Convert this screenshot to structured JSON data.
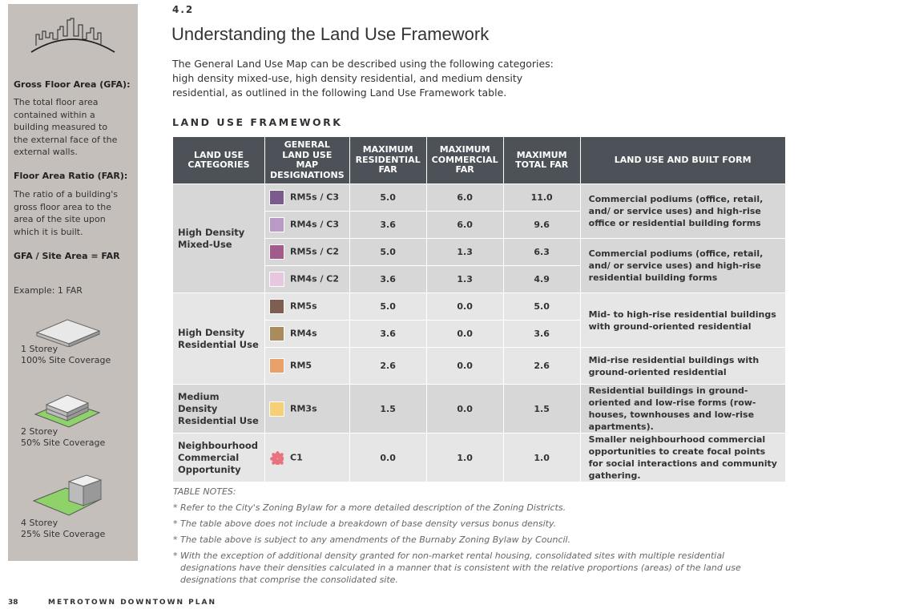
{
  "sidebar": {
    "gfa_heading": "Gross Floor Area (GFA):",
    "gfa_text": "The total floor area contained within a building measured to the external face of the external walls.",
    "far_heading": "Floor Area Ratio (FAR):",
    "far_text": "The ratio of a building's gross floor area to the area of the site upon which it is built.",
    "formula": "GFA / Site Area = FAR",
    "example": "Example: 1 FAR",
    "diagrams": [
      {
        "storeys": "1 Storey",
        "coverage": "100% Site Coverage"
      },
      {
        "storeys": "2 Storey",
        "coverage": "50% Site Coverage"
      },
      {
        "storeys": "4 Storey",
        "coverage": "25% Site Coverage"
      }
    ]
  },
  "header": {
    "section": "4.2",
    "title": "Understanding the Land Use Framework",
    "intro": "The General Land Use Map can be described using the following categories: high density mixed-use, high density residential, and medium density residential, as outlined in the following Land Use Framework table."
  },
  "table": {
    "title": "LAND USE FRAMEWORK",
    "headers": [
      "LAND USE CATEGORIES",
      "GENERAL LAND USE MAP DESIGNATIONS",
      "MAXIMUM RESIDENTIAL FAR",
      "MAXIMUM COMMERCIAL FAR",
      "MAXIMUM TOTAL FAR",
      "LAND USE AND BUILT FORM"
    ],
    "groups": [
      {
        "category": "High Density Mixed-Use",
        "forms": [
          {
            "text": "Commercial podiums (office, retail, and/ or service uses) and high-rise office or residential building forms",
            "rows": [
              {
                "designation": "RM5s / C3",
                "color": "#7b5a8e",
                "residential": "5.0",
                "commercial": "6.0",
                "total": "11.0"
              },
              {
                "designation": "RM4s / C3",
                "color": "#b99ac6",
                "residential": "3.6",
                "commercial": "6.0",
                "total": "9.6"
              }
            ]
          },
          {
            "text": "Commercial podiums (office, retail, and/ or service uses) and high-rise residential building forms",
            "rows": [
              {
                "designation": "RM5s / C2",
                "color": "#a35b8c",
                "residential": "5.0",
                "commercial": "1.3",
                "total": "6.3"
              },
              {
                "designation": "RM4s / C2",
                "color": "#e6c7df",
                "residential": "3.6",
                "commercial": "1.3",
                "total": "4.9"
              }
            ]
          }
        ]
      },
      {
        "category": "High Density Residential Use",
        "forms": [
          {
            "text": "Mid- to high-rise residential buildings with ground-oriented residential",
            "rows": [
              {
                "designation": "RM5s",
                "color": "#7d5e50",
                "residential": "5.0",
                "commercial": "0.0",
                "total": "5.0"
              },
              {
                "designation": "RM4s",
                "color": "#a98b5e",
                "residential": "3.6",
                "commercial": "0.0",
                "total": "3.6"
              }
            ]
          },
          {
            "text": "Mid-rise residential buildings with ground-oriented residential",
            "rows": [
              {
                "designation": "RM5",
                "color": "#e9a06b",
                "residential": "2.6",
                "commercial": "0.0",
                "total": "2.6"
              }
            ]
          }
        ]
      },
      {
        "category": "Medium Density Residential Use",
        "forms": [
          {
            "text": "Residential buildings in ground-oriented and low-rise forms (row-houses, townhouses and low-rise apartments).",
            "rows": [
              {
                "designation": "RM3s",
                "color": "#f6cf76",
                "residential": "1.5",
                "commercial": "0.0",
                "total": "1.5"
              }
            ]
          }
        ]
      },
      {
        "category": "Neighbourhood Commercial Opportunity",
        "forms": [
          {
            "text": "Smaller neighbourhood commercial opportunities to create focal points for social interactions and community gathering.",
            "rows": [
              {
                "designation": "C1",
                "color": "#e8737f",
                "marker": "asterisk",
                "residential": "0.0",
                "commercial": "1.0",
                "total": "1.0"
              }
            ]
          }
        ]
      }
    ]
  },
  "notes": {
    "title": "TABLE NOTES:",
    "items": [
      "* Refer to the City's Zoning Bylaw for a more detailed description of the Zoning Districts.",
      "* The table above does not include a breakdown of base density versus bonus density.",
      "* The table above is subject to any amendments of the Burnaby Zoning Bylaw by Council.",
      "* With the exception of additional density granted for non-market rental housing, consolidated sites with multiple residential designations have their densities calculated in a manner that is consistent with the relative proportions (areas) of the land use designations that comprise the consolidated site."
    ]
  },
  "footer": {
    "page": "38",
    "document": "METROTOWN DOWNTOWN PLAN"
  }
}
